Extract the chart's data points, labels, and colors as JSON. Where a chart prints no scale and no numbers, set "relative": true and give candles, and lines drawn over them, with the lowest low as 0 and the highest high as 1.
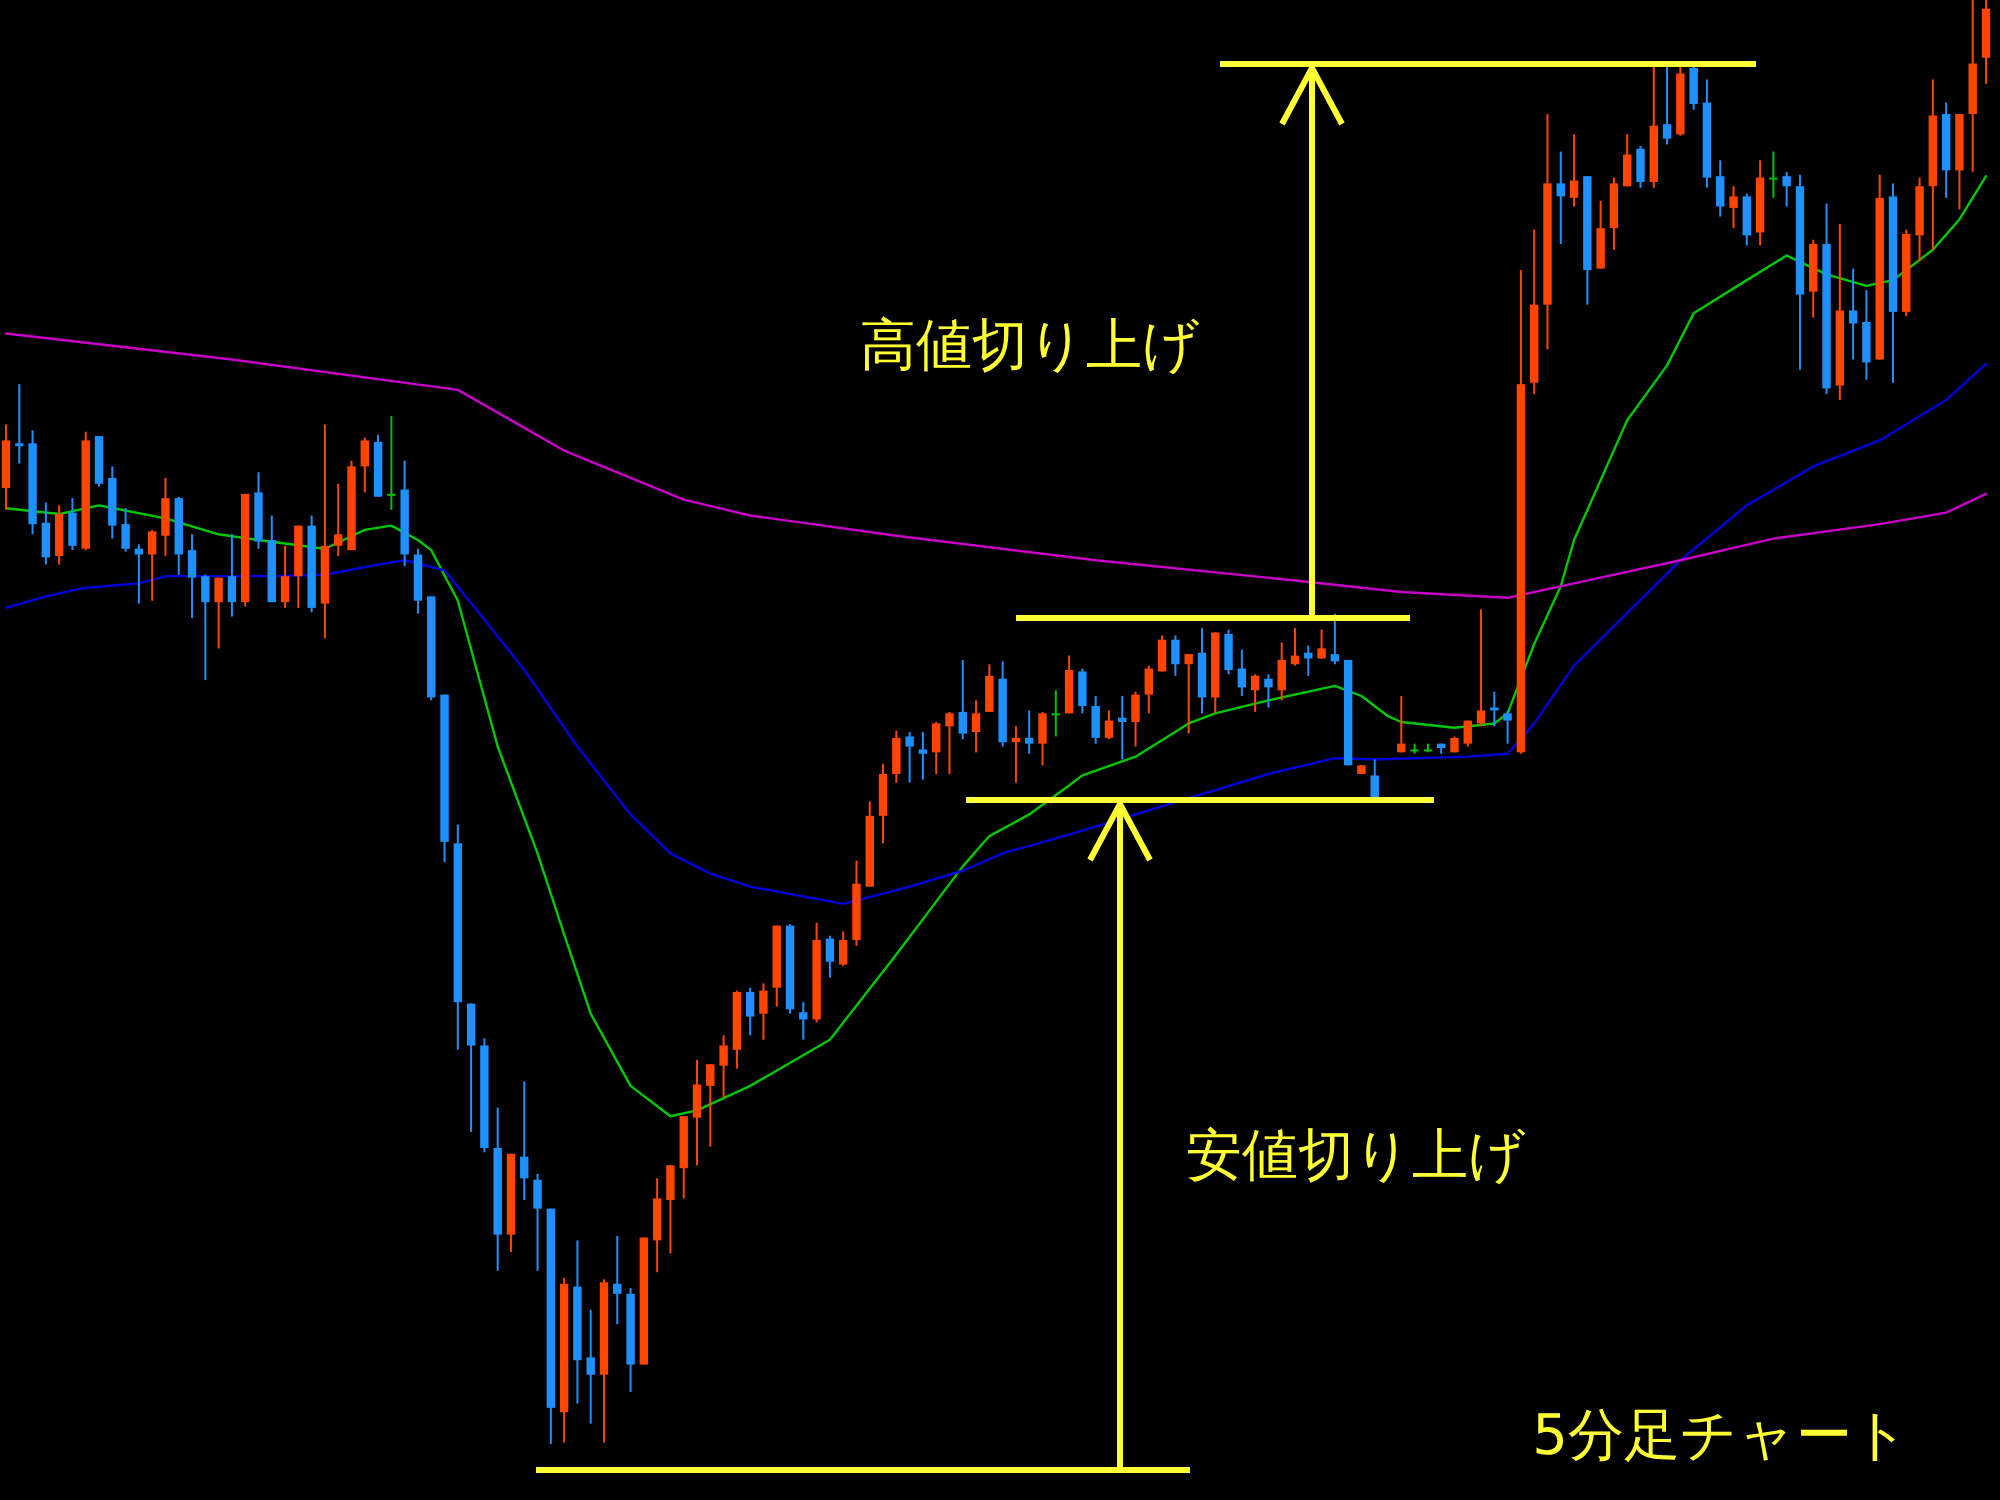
{
  "chart_data": {
    "type": "candlestick",
    "relative": true,
    "annotations": [
      "高値切り上げ",
      "安値切り上げ",
      "5分足チャート"
    ],
    "categories": [
      null,
      null,
      null,
      null,
      null,
      null,
      null,
      null,
      null,
      null,
      null,
      null,
      null,
      null,
      null,
      null,
      null,
      null,
      null,
      null,
      null,
      null,
      null,
      null,
      null,
      null,
      null,
      null,
      null,
      null,
      null,
      null,
      null,
      null,
      null,
      null,
      null,
      null,
      null,
      null,
      null,
      null,
      null,
      null,
      null,
      null,
      null,
      null,
      null,
      null,
      null,
      null,
      null,
      null,
      null,
      null,
      null,
      null,
      null,
      null,
      null,
      null,
      null,
      null,
      null,
      null,
      null,
      null,
      null,
      null,
      null,
      null,
      null,
      null,
      null,
      null,
      null,
      null,
      null,
      null,
      null,
      null,
      null,
      null,
      null,
      null,
      null,
      null,
      null,
      null,
      null,
      null,
      null,
      null,
      null,
      null,
      null,
      null,
      null,
      null,
      null,
      null,
      null,
      null,
      null,
      null,
      null,
      null,
      null,
      null,
      null,
      null,
      null,
      null,
      null,
      null,
      null,
      null,
      null,
      null,
      null,
      null,
      null,
      null,
      null,
      null,
      null,
      null,
      null,
      null,
      null,
      null,
      null,
      null,
      null,
      null,
      null,
      null,
      null,
      null,
      null,
      null,
      null,
      null,
      null,
      null,
      null,
      null,
      null,
      null
    ],
    "ohlc": [
      [
        0.662,
        0.706,
        0.647,
        0.695
      ],
      [
        0.693,
        0.734,
        0.679,
        0.691
      ],
      [
        0.693,
        0.702,
        0.63,
        0.637
      ],
      [
        0.638,
        0.652,
        0.609,
        0.614
      ],
      [
        0.615,
        0.65,
        0.609,
        0.644
      ],
      [
        0.645,
        0.655,
        0.619,
        0.622
      ],
      [
        0.62,
        0.701,
        0.619,
        0.695
      ],
      [
        0.698,
        0.698,
        0.663,
        0.665
      ],
      [
        0.669,
        0.677,
        0.627,
        0.636
      ],
      [
        0.637,
        0.648,
        0.618,
        0.62
      ],
      [
        0.62,
        0.623,
        0.582,
        0.616
      ],
      [
        0.616,
        0.633,
        0.584,
        0.632
      ],
      [
        0.629,
        0.669,
        0.615,
        0.655
      ],
      [
        0.655,
        0.656,
        0.602,
        0.616
      ],
      [
        0.619,
        0.63,
        0.572,
        0.6
      ],
      [
        0.601,
        0.602,
        0.529,
        0.583
      ],
      [
        0.583,
        0.6,
        0.551,
        0.6
      ],
      [
        0.601,
        0.63,
        0.573,
        0.583
      ],
      [
        0.583,
        0.658,
        0.58,
        0.658
      ],
      [
        0.659,
        0.673,
        0.62,
        0.625
      ],
      [
        0.626,
        0.643,
        0.583,
        0.583
      ],
      [
        0.583,
        0.622,
        0.579,
        0.601
      ],
      [
        0.601,
        0.636,
        0.579,
        0.636
      ],
      [
        0.636,
        0.643,
        0.576,
        0.579
      ],
      [
        0.582,
        0.706,
        0.558,
        0.622
      ],
      [
        0.622,
        0.665,
        0.615,
        0.63
      ],
      [
        0.619,
        0.681,
        0.619,
        0.677
      ],
      [
        0.677,
        0.697,
        0.659,
        0.695
      ],
      [
        0.694,
        0.699,
        0.656,
        0.656
      ],
      [
        0.658,
        0.712,
        0.647,
        0.658
      ],
      [
        0.661,
        0.681,
        0.608,
        0.616
      ],
      [
        0.616,
        0.62,
        0.575,
        0.584
      ],
      [
        0.587,
        0.587,
        0.515,
        0.517
      ],
      [
        0.519,
        0.519,
        0.403,
        0.417
      ],
      [
        0.416,
        0.429,
        0.273,
        0.306
      ],
      [
        0.305,
        0.305,
        0.216,
        0.276
      ],
      [
        0.276,
        0.281,
        0.202,
        0.205
      ],
      [
        0.205,
        0.233,
        0.12,
        0.145
      ],
      [
        0.145,
        0.201,
        0.133,
        0.201
      ],
      [
        0.199,
        0.251,
        0.169,
        0.184
      ],
      [
        0.183,
        0.187,
        0.12,
        0.163
      ],
      [
        0.163,
        0.163,
        0,
        0.025
      ],
      [
        0.022,
        0.115,
        0.001,
        0.111
      ],
      [
        0.109,
        0.141,
        0.028,
        0.058
      ],
      [
        0.06,
        0.093,
        0.014,
        0.048
      ],
      [
        0.048,
        0.114,
        0.001,
        0.112
      ],
      [
        0.111,
        0.144,
        0.083,
        0.104
      ],
      [
        0.104,
        0.108,
        0.036,
        0.055
      ],
      [
        0.055,
        0.143,
        0.055,
        0.143
      ],
      [
        0.141,
        0.184,
        0.119,
        0.17
      ],
      [
        0.169,
        0.193,
        0.132,
        0.193
      ],
      [
        0.191,
        0.227,
        0.17,
        0.227
      ],
      [
        0.226,
        0.266,
        0.193,
        0.249
      ],
      [
        0.248,
        0.263,
        0.206,
        0.263
      ],
      [
        0.262,
        0.283,
        0.24,
        0.276
      ],
      [
        0.273,
        0.314,
        0.26,
        0.313
      ],
      [
        0.313,
        0.316,
        0.283,
        0.296
      ],
      [
        0.298,
        0.319,
        0.28,
        0.314
      ],
      [
        0.316,
        0.359,
        0.303,
        0.359
      ],
      [
        0.359,
        0.36,
        0.298,
        0.301
      ],
      [
        0.299,
        0.306,
        0.28,
        0.294
      ],
      [
        0.294,
        0.361,
        0.292,
        0.349
      ],
      [
        0.35,
        0.352,
        0.323,
        0.334
      ],
      [
        0.332,
        0.355,
        0.331,
        0.349
      ],
      [
        0.349,
        0.404,
        0.345,
        0.388
      ],
      [
        0.386,
        0.445,
        0.386,
        0.435
      ],
      [
        0.435,
        0.471,
        0.416,
        0.464
      ],
      [
        0.464,
        0.494,
        0.458,
        0.489
      ],
      [
        0.49,
        0.493,
        0.458,
        0.483
      ],
      [
        0.481,
        0.493,
        0.46,
        0.478
      ],
      [
        0.479,
        0.5,
        0.464,
        0.499
      ],
      [
        0.497,
        0.507,
        0.464,
        0.506
      ],
      [
        0.507,
        0.543,
        0.488,
        0.492
      ],
      [
        0.493,
        0.515,
        0.479,
        0.506
      ],
      [
        0.507,
        0.54,
        0.507,
        0.532
      ],
      [
        0.53,
        0.542,
        0.483,
        0.486
      ],
      [
        0.486,
        0.497,
        0.458,
        0.489
      ],
      [
        0.489,
        0.508,
        0.478,
        0.485
      ],
      [
        0.485,
        0.507,
        0.47,
        0.506
      ],
      [
        0.506,
        0.522,
        0.49,
        0.506
      ],
      [
        0.506,
        0.546,
        0.506,
        0.536
      ],
      [
        0.535,
        0.537,
        0.506,
        0.511
      ],
      [
        0.511,
        0.518,
        0.485,
        0.489
      ],
      [
        0.489,
        0.508,
        0.488,
        0.501
      ],
      [
        0.503,
        0.518,
        0.474,
        0.5
      ],
      [
        0.5,
        0.521,
        0.483,
        0.519
      ],
      [
        0.519,
        0.539,
        0.506,
        0.537
      ],
      [
        0.535,
        0.56,
        0.535,
        0.557
      ],
      [
        0.557,
        0.56,
        0.532,
        0.54
      ],
      [
        0.54,
        0.547,
        0.492,
        0.547
      ],
      [
        0.548,
        0.565,
        0.506,
        0.517
      ],
      [
        0.517,
        0.562,
        0.506,
        0.562
      ],
      [
        0.561,
        0.564,
        0.533,
        0.536
      ],
      [
        0.537,
        0.55,
        0.518,
        0.524
      ],
      [
        0.522,
        0.533,
        0.507,
        0.532
      ],
      [
        0.53,
        0.533,
        0.51,
        0.524
      ],
      [
        0.522,
        0.555,
        0.515,
        0.543
      ],
      [
        0.54,
        0.565,
        0.539,
        0.546
      ],
      [
        0.548,
        0.553,
        0.532,
        0.544
      ],
      [
        0.544,
        0.564,
        0.544,
        0.551
      ],
      [
        0.547,
        0.575,
        0.54,
        0.542
      ],
      [
        0.543,
        0.543,
        0.47,
        0.47
      ],
      [
        0.464,
        0.47,
        0.464,
        0.47
      ],
      [
        0.463,
        0.474,
        0.446,
        0.446
      ],
      null,
      [
        0.479,
        0.518,
        0.479,
        0.485
      ],
      [
        0.481,
        0.485,
        0.478,
        0.481
      ],
      [
        0.481,
        0.485,
        0.479,
        0.481
      ],
      [
        0.485,
        0.485,
        0.478,
        0.482
      ],
      [
        0.479,
        0.49,
        0.479,
        0.489
      ],
      [
        0.485,
        0.501,
        0.483,
        0.501
      ],
      [
        0.499,
        0.578,
        0.497,
        0.508
      ],
      [
        0.51,
        0.521,
        0.497,
        0.508
      ],
      [
        0.506,
        0.508,
        0.485,
        0.501
      ],
      [
        0.479,
        0.813,
        0.478,
        0.734
      ],
      [
        0.735,
        0.841,
        0.727,
        0.789
      ],
      [
        0.789,
        0.921,
        0.758,
        0.873
      ],
      [
        0.873,
        0.895,
        0.831,
        0.864
      ],
      [
        0.863,
        0.907,
        0.857,
        0.875
      ],
      [
        0.878,
        0.878,
        0.789,
        0.813
      ],
      [
        0.814,
        0.861,
        0.814,
        0.842
      ],
      [
        0.842,
        0.877,
        0.827,
        0.873
      ],
      [
        0.871,
        0.907,
        0.871,
        0.893
      ],
      [
        0.897,
        0.899,
        0.87,
        0.874
      ],
      [
        0.874,
        0.954,
        0.87,
        0.913
      ],
      [
        0.914,
        0.954,
        0.9,
        0.904
      ],
      [
        0.907,
        0.954,
        0.906,
        0.949
      ],
      [
        0.953,
        0.954,
        0.924,
        0.928
      ],
      [
        0.929,
        0.945,
        0.87,
        0.877
      ],
      [
        0.878,
        0.889,
        0.85,
        0.857
      ],
      [
        0.856,
        0.871,
        0.842,
        0.864
      ],
      [
        0.864,
        0.866,
        0.83,
        0.837
      ],
      [
        0.839,
        0.889,
        0.83,
        0.877
      ],
      [
        0.877,
        0.895,
        0.863,
        0.877
      ],
      [
        0.878,
        0.881,
        0.857,
        0.871
      ],
      [
        0.871,
        0.879,
        0.744,
        0.796
      ],
      [
        0.798,
        0.834,
        0.78,
        0.831
      ],
      [
        0.831,
        0.859,
        0.727,
        0.731
      ],
      [
        0.733,
        0.845,
        0.723,
        0.785
      ],
      [
        0.785,
        0.814,
        0.751,
        0.776
      ],
      [
        0.777,
        0.799,
        0.737,
        0.749
      ],
      [
        0.751,
        0.879,
        0.751,
        0.863
      ],
      [
        0.864,
        0.873,
        0.735,
        0.784
      ],
      [
        0.784,
        0.841,
        0.781,
        0.838
      ],
      [
        0.837,
        0.877,
        0.819,
        0.871
      ],
      [
        0.871,
        0.945,
        0.827,
        0.92
      ],
      [
        0.921,
        0.929,
        0.863,
        0.882
      ],
      [
        0.882,
        0.921,
        0.855,
        0.921
      ],
      [
        0.921,
        1,
        0.881,
        0.956
      ],
      [
        0.96,
        1,
        0.942,
        0.994
      ]
    ],
    "colors": [
      "#ff4500",
      "#1e90ff",
      "#1e90ff",
      "#1e90ff",
      "#ff4500",
      "#1e90ff",
      "#ff4500",
      "#1e90ff",
      "#1e90ff",
      "#1e90ff",
      "#1e90ff",
      "#ff4500",
      "#ff4500",
      "#1e90ff",
      "#1e90ff",
      "#1e90ff",
      "#ff4500",
      "#1e90ff",
      "#ff4500",
      "#1e90ff",
      "#1e90ff",
      "#ff4500",
      "#ff4500",
      "#1e90ff",
      "#ff4500",
      "#ff4500",
      "#ff4500",
      "#ff4500",
      "#1e90ff",
      "#00c000",
      "#1e90ff",
      "#1e90ff",
      "#1e90ff",
      "#1e90ff",
      "#1e90ff",
      "#1e90ff",
      "#1e90ff",
      "#1e90ff",
      "#ff4500",
      "#1e90ff",
      "#1e90ff",
      "#1e90ff",
      "#ff4500",
      "#1e90ff",
      "#1e90ff",
      "#ff4500",
      "#1e90ff",
      "#1e90ff",
      "#ff4500",
      "#ff4500",
      "#ff4500",
      "#ff4500",
      "#ff4500",
      "#ff4500",
      "#ff4500",
      "#ff4500",
      "#1e90ff",
      "#ff4500",
      "#ff4500",
      "#1e90ff",
      "#1e90ff",
      "#ff4500",
      "#1e90ff",
      "#ff4500",
      "#ff4500",
      "#ff4500",
      "#ff4500",
      "#ff4500",
      "#1e90ff",
      "#1e90ff",
      "#ff4500",
      "#ff4500",
      "#1e90ff",
      "#ff4500",
      "#ff4500",
      "#1e90ff",
      "#ff4500",
      "#1e90ff",
      "#ff4500",
      "#00c000",
      "#ff4500",
      "#1e90ff",
      "#1e90ff",
      "#ff4500",
      "#1e90ff",
      "#ff4500",
      "#ff4500",
      "#ff4500",
      "#1e90ff",
      "#ff4500",
      "#1e90ff",
      "#ff4500",
      "#1e90ff",
      "#1e90ff",
      "#ff4500",
      "#1e90ff",
      "#ff4500",
      "#ff4500",
      "#1e90ff",
      "#ff4500",
      "#1e90ff",
      "#1e90ff",
      "#ff4500",
      "#1e90ff",
      null,
      "#ff4500",
      "#00c000",
      "#00c000",
      "#1e90ff",
      "#ff4500",
      "#ff4500",
      "#ff4500",
      "#1e90ff",
      "#1e90ff",
      "#ff4500",
      "#ff4500",
      "#ff4500",
      "#1e90ff",
      "#ff4500",
      "#1e90ff",
      "#ff4500",
      "#ff4500",
      "#ff4500",
      "#1e90ff",
      "#ff4500",
      "#1e90ff",
      "#ff4500",
      "#1e90ff",
      "#1e90ff",
      "#1e90ff",
      "#ff4500",
      "#1e90ff",
      "#ff4500",
      "#00c000",
      "#1e90ff",
      "#1e90ff",
      "#ff4500",
      "#1e90ff",
      "#ff4500",
      "#1e90ff",
      "#1e90ff",
      "#ff4500",
      "#1e90ff",
      "#ff4500",
      "#ff4500",
      "#ff4500",
      "#1e90ff",
      "#ff4500",
      "#ff4500",
      "#ff4500"
    ],
    "series": [
      {
        "type": "line",
        "color": "#00c800",
        "values": [
          0.648,
          null,
          null,
          null,
          0.644,
          null,
          null,
          0.65,
          null,
          null,
          null,
          null,
          0.641,
          null,
          null,
          null,
          0.63,
          null,
          null,
          0.626,
          null,
          null,
          null,
          null,
          0.62,
          null,
          null,
          0.633,
          null,
          0.636,
          null,
          0.626,
          0.619,
          null,
          0.584,
          null,
          null,
          0.483,
          null,
          null,
          0.409,
          null,
          0.353,
          null,
          0.298,
          null,
          null,
          0.248,
          null,
          null,
          0.227,
          null,
          0.231,
          null,
          null,
          null,
          0.248,
          null,
          null,
          null,
          null,
          null,
          0.28,
          null,
          null,
          null,
          null,
          0.339,
          null,
          null,
          null,
          null,
          0.4,
          null,
          0.421,
          null,
          null,
          0.436,
          null,
          null,
          0.456,
          0.463,
          null,
          null,
          null,
          0.476,
          null,
          null,
          null,
          0.499,
          null,
          0.506,
          null,
          null,
          null,
          0.515,
          null,
          null,
          null,
          null,
          0.525,
          null,
          0.518,
          null,
          0.504,
          0.5,
          null,
          null,
          null,
          0.496,
          null,
          null,
          0.499,
          0.506,
          null,
          0.554,
          null,
          0.594,
          0.626,
          null,
          null,
          null,
          0.709,
          null,
          null,
          0.747,
          null,
          0.783,
          null,
          null,
          null,
          0.806,
          null,
          null,
          0.823,
          null,
          null,
          0.81,
          null,
          null,
          0.802,
          null,
          0.806,
          null,
          null,
          0.827,
          null,
          0.848,
          null,
          0.878
        ]
      },
      {
        "type": "line",
        "color": "#0000dc",
        "values": [
          0.579,
          null,
          null,
          0.587,
          null,
          null,
          0.593,
          null,
          null,
          null,
          0.596,
          null,
          0.601,
          null,
          null,
          null,
          null,
          null,
          null,
          null,
          0.601,
          null,
          null,
          null,
          0.602,
          null,
          null,
          null,
          0.609,
          null,
          0.612,
          null,
          null,
          0.605,
          null,
          null,
          0.571,
          null,
          null,
          0.536,
          null,
          null,
          null,
          0.483,
          null,
          null,
          null,
          0.436,
          null,
          null,
          0.409,
          null,
          null,
          0.395,
          null,
          null,
          0.386,
          null,
          null,
          null,
          null,
          null,
          null,
          0.374,
          null,
          null,
          null,
          null,
          0.386,
          null,
          null,
          null,
          0.397,
          null,
          null,
          0.409,
          null,
          null,
          null,
          null,
          0.422,
          null,
          null,
          null,
          null,
          0.436,
          null,
          null,
          null,
          null,
          0.45,
          null,
          null,
          null,
          null,
          0.464,
          null,
          null,
          null,
          null,
          0.475,
          null,
          null,
          0.474,
          null,
          null,
          null,
          null,
          null,
          null,
          0.476,
          null,
          null,
          0.478,
          null,
          0.499,
          null,
          null,
          0.539,
          null,
          null,
          null,
          null,
          null,
          null,
          null,
          0.612,
          null,
          null,
          null,
          null,
          0.65,
          null,
          null,
          null,
          null,
          0.677,
          null,
          null,
          null,
          null,
          0.695,
          null,
          null,
          null,
          null,
          0.723,
          null,
          null,
          0.748
        ]
      },
      {
        "type": "line",
        "color": "#c800c8",
        "values": [
          0.769,
          null,
          null,
          null,
          null,
          null,
          null,
          null,
          null,
          null,
          null,
          null,
          null,
          null,
          null,
          null,
          null,
          0.751,
          null,
          null,
          null,
          null,
          null,
          null,
          null,
          null,
          null,
          null,
          null,
          null,
          null,
          null,
          null,
          null,
          0.73,
          null,
          null,
          null,
          null,
          null,
          null,
          null,
          0.688,
          null,
          null,
          null,
          null,
          null,
          null,
          null,
          null,
          0.654,
          null,
          null,
          null,
          null,
          0.643,
          null,
          null,
          null,
          null,
          null,
          null,
          null,
          null,
          null,
          null,
          0.629,
          null,
          null,
          null,
          null,
          null,
          null,
          null,
          null,
          null,
          null,
          null,
          null,
          null,
          null,
          0.612,
          null,
          null,
          null,
          null,
          null,
          null,
          null,
          null,
          null,
          null,
          null,
          null,
          null,
          null,
          0.598,
          null,
          null,
          null,
          null,
          null,
          null,
          null,
          0.59,
          null,
          null,
          null,
          null,
          null,
          null,
          null,
          0.586,
          null,
          null,
          null,
          null,
          0.596,
          null,
          null,
          null,
          null,
          null,
          null,
          null,
          0.612,
          null,
          null,
          null,
          null,
          null,
          null,
          0.627,
          null,
          null,
          null,
          null,
          null,
          null,
          null,
          0.637,
          null,
          null,
          null,
          null,
          0.645,
          null,
          null,
          0.658
        ]
      }
    ]
  }
}
